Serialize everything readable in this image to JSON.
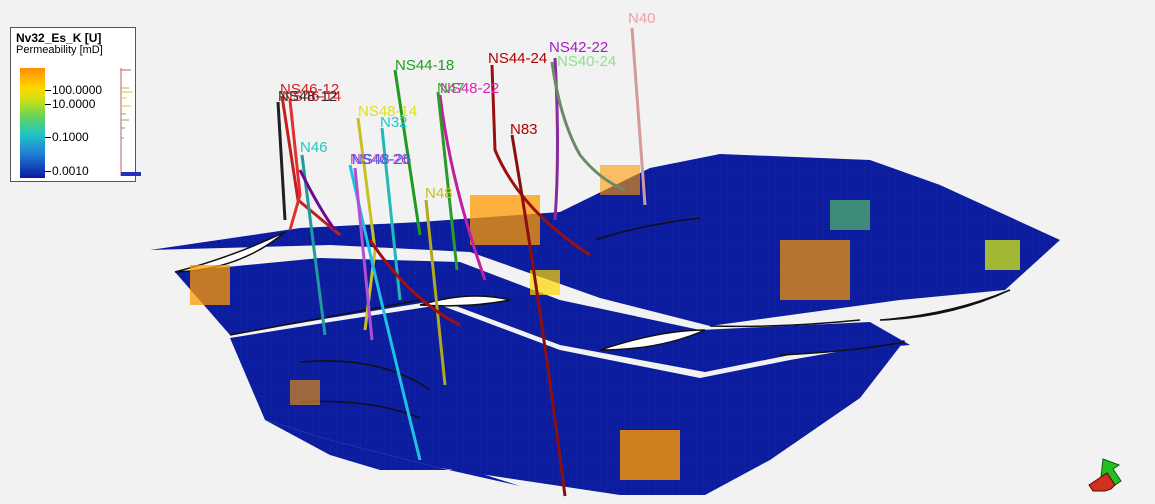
{
  "chart_data": {
    "type": "3d-grid",
    "property_name": "Nv32_Es_K [U]",
    "property_label": "Permeability [mD]",
    "colorbar": {
      "scale": "log",
      "ticks": [
        "100.0000",
        "10.0000",
        "0.1000",
        "0.0010"
      ],
      "range": [
        0.001,
        1000
      ]
    },
    "colors": {
      "grid_base": "#0a1a9c",
      "high": "#ff9900",
      "mid": "#ffd700",
      "low_mid": "#5ed35e",
      "background": "#f2f2f2"
    },
    "wells": [
      {
        "name": "N40",
        "color": "#f2a0a0"
      },
      {
        "name": "NS42-22",
        "color": "#a020c0"
      },
      {
        "name": "NS40-24",
        "color": "#8ee08e"
      },
      {
        "name": "NS44-24",
        "color": "#b00000"
      },
      {
        "name": "NS44-18",
        "color": "#1ea01e"
      },
      {
        "name": "NS48-22",
        "color": "#e020c0"
      },
      {
        "name": "N47",
        "color": "#2bb02b"
      },
      {
        "name": "N83",
        "color": "#b00000"
      },
      {
        "name": "NS46-12",
        "color": "#d02020"
      },
      {
        "name": "NS46-14",
        "color": "#e02020"
      },
      {
        "name": "NS48-12",
        "color": "#303030"
      },
      {
        "name": "NS48-14",
        "color": "#e0e020"
      },
      {
        "name": "N32",
        "color": "#20c8c8"
      },
      {
        "name": "N46",
        "color": "#20c8c8"
      },
      {
        "name": "NS46-26",
        "color": "#c040c0"
      },
      {
        "name": "NS48-26",
        "color": "#4060e0"
      },
      {
        "name": "N48",
        "color": "#c0c020"
      }
    ]
  }
}
